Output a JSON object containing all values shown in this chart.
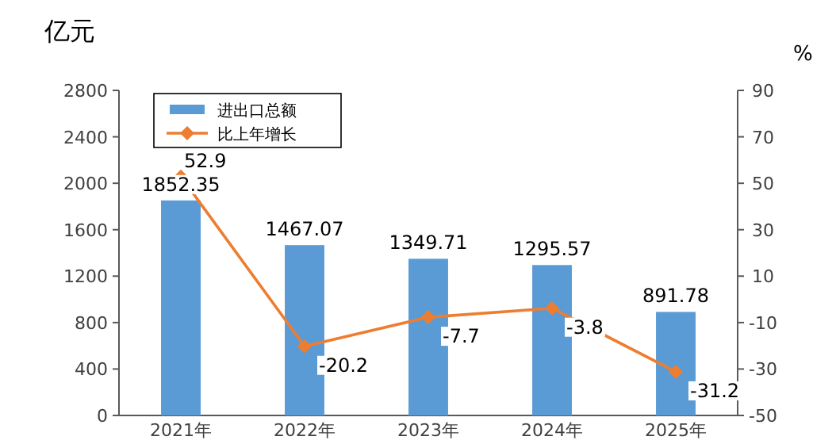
{
  "chart_data": {
    "type": "bar",
    "ylabel": "亿元",
    "y2label": "%",
    "categories": [
      "2021年",
      "2022年",
      "2023年",
      "2024年",
      "2025年"
    ],
    "series": [
      {
        "name": "进出口总额",
        "color": "#5b9bd5",
        "values": [
          1852.35,
          1467.07,
          1349.71,
          1295.57,
          891.78
        ]
      },
      {
        "name": "比上年增长",
        "type": "line",
        "axis": "y2",
        "color": "#ed7d31",
        "marker": "diamond",
        "values": [
          52.9,
          -20.2,
          -7.7,
          -3.8,
          -31.2
        ]
      }
    ],
    "ylim": [
      0,
      2800
    ],
    "yticks": [
      0,
      400,
      800,
      1200,
      1600,
      2000,
      2400,
      2800
    ],
    "y2lim": [
      -50,
      90
    ],
    "y2ticks": [
      -50,
      -30,
      -10,
      10,
      30,
      50,
      70,
      90
    ],
    "data_labels": true,
    "legend": "top left",
    "grid": false
  }
}
